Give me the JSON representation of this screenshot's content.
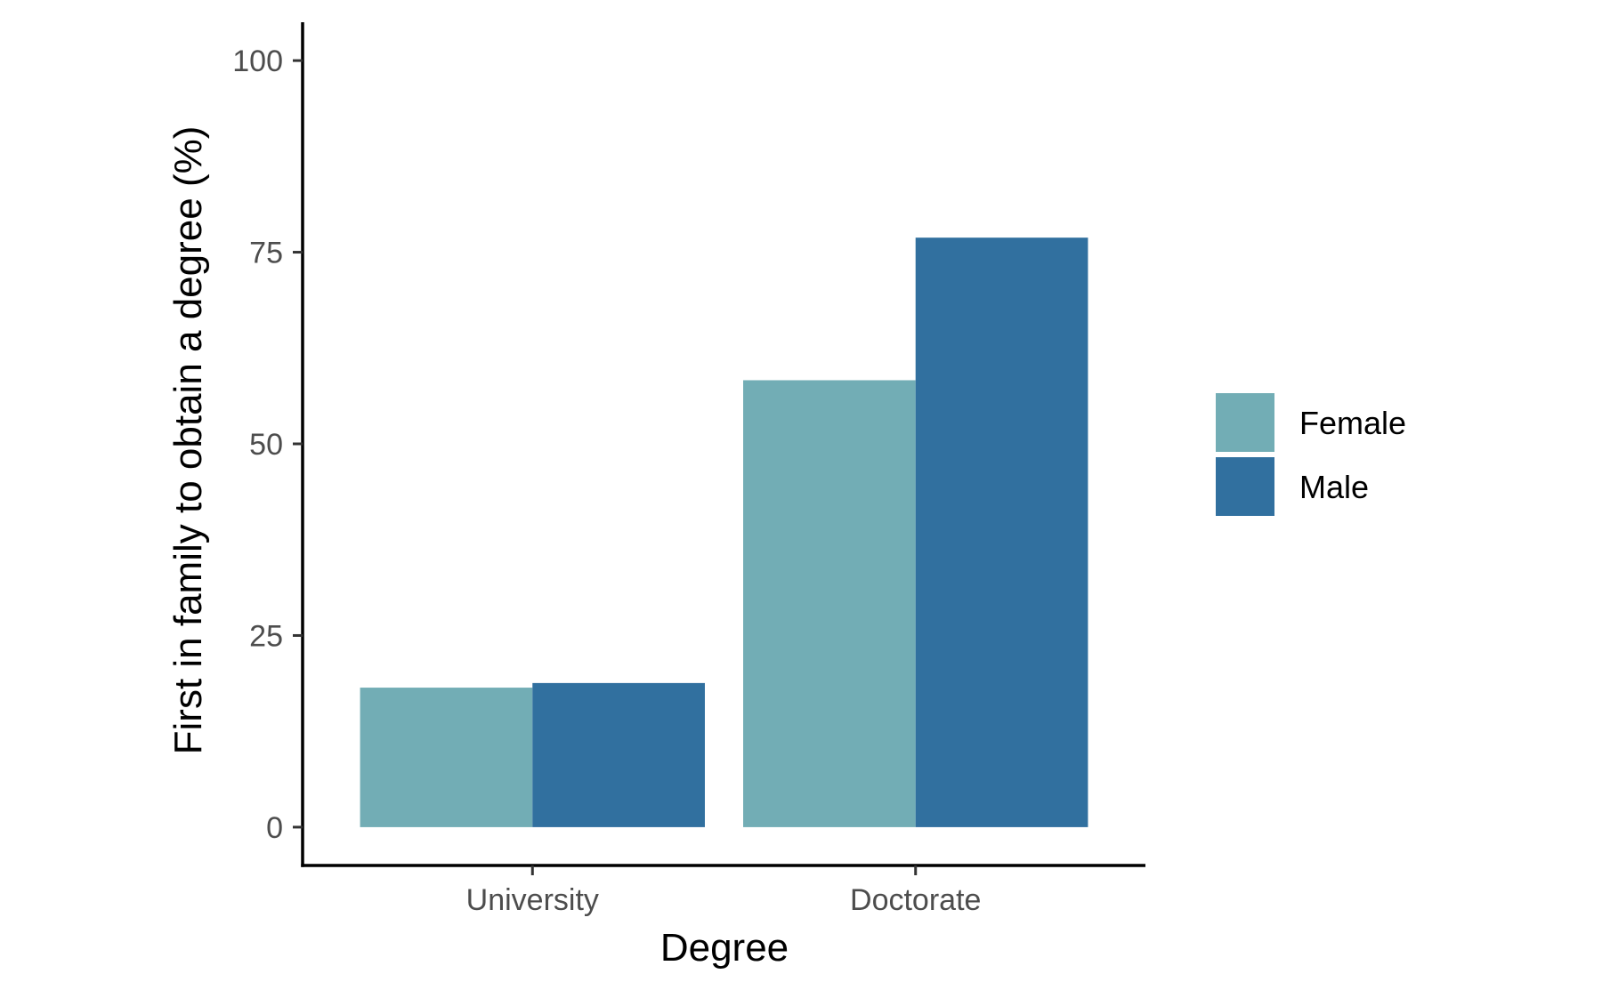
{
  "chart_data": {
    "type": "bar",
    "xlabel": "Degree",
    "ylabel": "First in family to obtain a degree (%)",
    "categories": [
      "University",
      "Doctorate"
    ],
    "series": [
      {
        "name": "Female",
        "color": "#72adb5",
        "values": [
          18.2,
          58.3
        ]
      },
      {
        "name": "Male",
        "color": "#31709f",
        "values": [
          18.8,
          76.9
        ]
      }
    ],
    "ylim": [
      -5,
      105
    ],
    "yticks": [
      0,
      25,
      50,
      75,
      100
    ],
    "grid": false,
    "legend_position": "right"
  }
}
